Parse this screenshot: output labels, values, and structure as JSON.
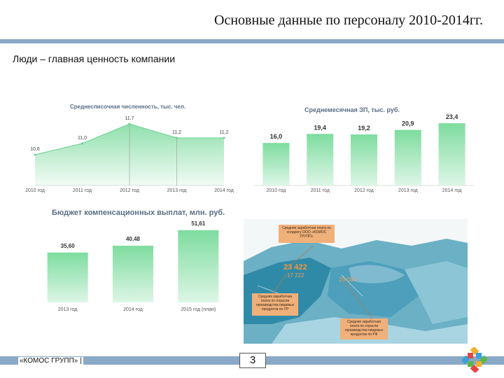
{
  "header": {
    "title": "Основные данные по персоналу 2010-2014гг.",
    "subtitle": "Люди – главная ценность компании"
  },
  "colors": {
    "accent_band": "#8aa8c8",
    "bar_green": "#86e0a6",
    "callout_orange": "#f0b07a"
  },
  "chart_headcount": {
    "title": "Среднесписочная численность, тыс. чел."
  },
  "chart_salary": {
    "title": "Среднемесячная ЗП, тыс. руб."
  },
  "chart_budget": {
    "title": "Бюджет компенсационных выплат, млн. руб."
  },
  "chart_data": [
    {
      "type": "area",
      "title": "Среднесписочная численность, тыс. чел.",
      "categories": [
        "2010 год",
        "2011 год",
        "2012 год",
        "2013 год",
        "2014 год"
      ],
      "values": [
        10.6,
        11.0,
        11.7,
        11.2,
        11.2
      ],
      "value_labels": [
        "10,6",
        "11,0",
        "11,7",
        "11,2",
        "11,2"
      ],
      "ylim": [
        9.5,
        12.0
      ]
    },
    {
      "type": "bar",
      "title": "Среднемесячная ЗП, тыс. руб.",
      "categories": [
        "2010 год",
        "2011 год",
        "2012 год",
        "2013 год",
        "2014 год"
      ],
      "values": [
        16.0,
        19.4,
        19.2,
        20.9,
        23.4
      ],
      "value_labels": [
        "16,0",
        "19,4",
        "19,2",
        "20,9",
        "23,4"
      ],
      "ylim": [
        0,
        25
      ]
    },
    {
      "type": "bar",
      "title": "Бюджет компенсационных выплат, млн. руб.",
      "categories": [
        "2013 год",
        "2014 год",
        "2015 год (план)"
      ],
      "values": [
        35.6,
        40.48,
        51.61
      ],
      "value_labels": [
        "35,60",
        "40,48",
        "51,61"
      ],
      "ylim": [
        0,
        55
      ]
    }
  ],
  "map": {
    "callout_company": "Средняя заработная плата по холдингу ООО «КОМОС ГРУПП»",
    "callout_region": "Средняя заработная плата по отрасли производства пищевых продуктов по УР",
    "callout_russia": "Средняя заработная плата по отрасли производства пищевых продуктов по РФ",
    "value_company": "23 422",
    "value_region": "17 222",
    "value_russia": "25 083"
  },
  "footer": {
    "company": "«КОМОС ГРУПП» |",
    "page_number": "3"
  }
}
